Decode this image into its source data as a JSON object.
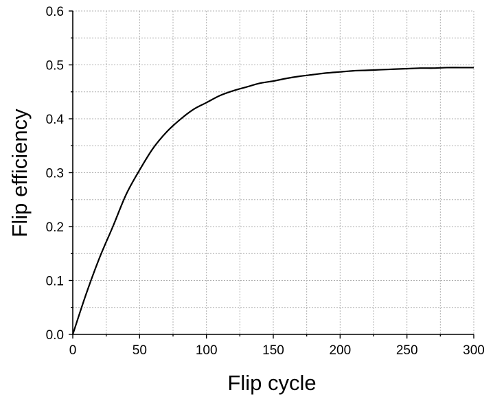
{
  "chart_data": {
    "type": "line",
    "title": "",
    "xlabel": "Flip cycle",
    "ylabel": "Flip efficiency",
    "xlim": [
      0,
      300
    ],
    "ylim": [
      0,
      0.6
    ],
    "grid": true,
    "legend": "none",
    "x_ticks": [
      0,
      50,
      100,
      150,
      200,
      250,
      300
    ],
    "y_ticks": [
      0.0,
      0.1,
      0.2,
      0.3,
      0.4,
      0.5,
      0.6
    ],
    "x_tick_labels": [
      "0",
      "50",
      "100",
      "150",
      "200",
      "250",
      "300"
    ],
    "y_tick_labels": [
      "0.0",
      "0.1",
      "0.2",
      "0.3",
      "0.4",
      "0.5",
      "0.6"
    ],
    "colors": {
      "line": "#000000",
      "grid": "#b0b0b0",
      "axis": "#000000"
    },
    "series": [
      {
        "x": [
          0,
          10,
          20,
          30,
          40,
          50,
          60,
          70,
          80,
          90,
          100,
          110,
          120,
          130,
          140,
          150,
          160,
          170,
          180,
          190,
          200,
          210,
          220,
          230,
          240,
          250,
          260,
          270,
          280,
          290,
          300
        ],
        "values": [
          0.0,
          0.075,
          0.142,
          0.2,
          0.26,
          0.305,
          0.345,
          0.375,
          0.398,
          0.417,
          0.43,
          0.443,
          0.452,
          0.459,
          0.466,
          0.47,
          0.475,
          0.479,
          0.482,
          0.485,
          0.487,
          0.489,
          0.49,
          0.491,
          0.492,
          0.493,
          0.494,
          0.494,
          0.495,
          0.495,
          0.495
        ]
      }
    ]
  }
}
